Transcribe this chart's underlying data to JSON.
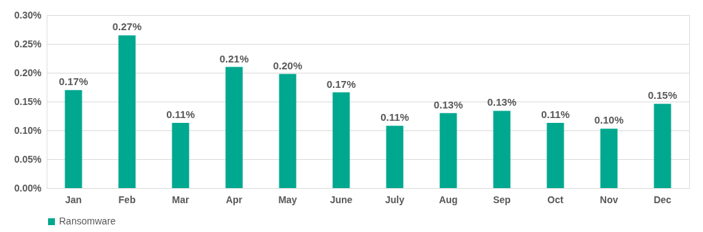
{
  "chart_data": {
    "type": "bar",
    "categories": [
      "Jan",
      "Feb",
      "Mar",
      "Apr",
      "May",
      "June",
      "July",
      "Aug",
      "Sep",
      "Oct",
      "Nov",
      "Dec"
    ],
    "series": [
      {
        "name": "Ransomware",
        "color": "#00a88f",
        "values": [
          0.17,
          0.265,
          0.113,
          0.21,
          0.198,
          0.166,
          0.108,
          0.13,
          0.134,
          0.113,
          0.103,
          0.146
        ],
        "value_labels": [
          "0.17%",
          "0.27%",
          "0.11%",
          "0.21%",
          "0.20%",
          "0.17%",
          "0.11%",
          "0.13%",
          "0.13%",
          "0.11%",
          "0.10%",
          "0.15%"
        ]
      }
    ],
    "ylim": [
      0,
      0.3
    ],
    "yticks": [
      {
        "value": 0,
        "label": "0.00%"
      },
      {
        "value": 0.05,
        "label": "0.05%"
      },
      {
        "value": 0.1,
        "label": "0.10%"
      },
      {
        "value": 0.15,
        "label": "0.15%"
      },
      {
        "value": 0.2,
        "label": "0.20%"
      },
      {
        "value": 0.25,
        "label": "0.25%"
      },
      {
        "value": 0.3,
        "label": "0.30%"
      }
    ],
    "grid": "y",
    "legend": "bottom"
  }
}
